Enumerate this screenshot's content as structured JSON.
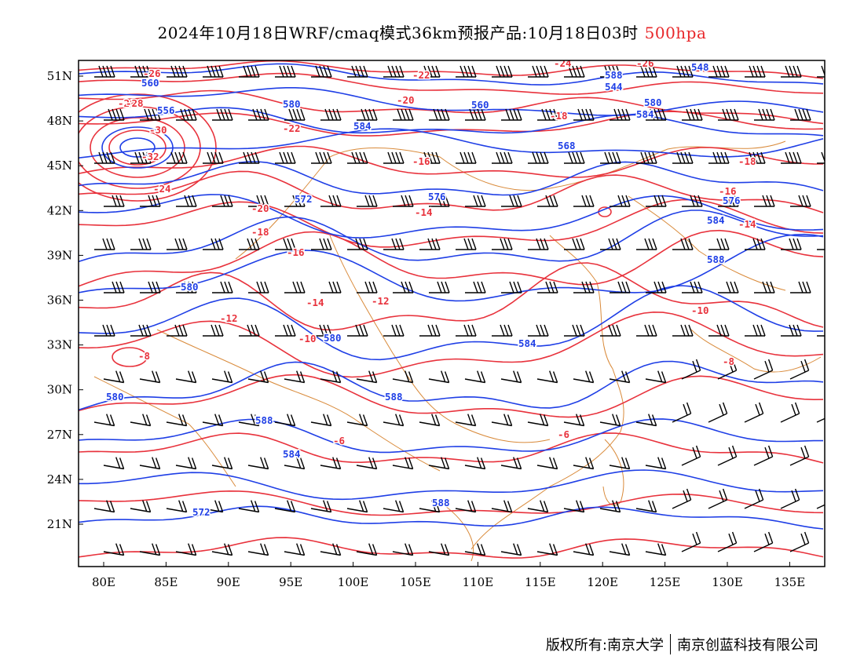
{
  "title": {
    "text": "2024年10月18日WRF/cmaq模式36km预报产品:10月18日03时",
    "level": "500hpa",
    "level_color": "#e8272a"
  },
  "colors": {
    "temperature_isotherm": "#e8323c",
    "geopotential_height": "#1f3fe6",
    "coastline_border": "#d98a3a",
    "wind_barb": "#000000"
  },
  "axes": {
    "lon_ticks": [
      "80E",
      "85E",
      "90E",
      "95E",
      "100E",
      "105E",
      "110E",
      "115E",
      "120E",
      "125E",
      "130E",
      "135E"
    ],
    "lat_ticks": [
      "51N",
      "48N",
      "45N",
      "42N",
      "39N",
      "36N",
      "33N",
      "30N",
      "27N",
      "24N",
      "21N"
    ]
  },
  "height_labels": [
    "560",
    "556",
    "580",
    "560",
    "584",
    "588",
    "548",
    "544",
    "580",
    "584",
    "568",
    "572",
    "576",
    "580",
    "584",
    "588",
    "576",
    "580",
    "584",
    "588",
    "580",
    "588",
    "584",
    "588",
    "572"
  ],
  "temperature_labels": [
    "-28",
    "-26",
    "-28",
    "-30",
    "-32",
    "-24",
    "-22",
    "-20",
    "-18",
    "-16",
    "-14",
    "-12",
    "-10",
    "-8",
    "-6",
    "-22",
    "-20",
    "-18",
    "-16",
    "-24",
    "-26",
    "-14",
    "-10",
    "-8",
    "-6",
    "-16",
    "-18",
    "-12",
    "-14"
  ],
  "footer": {
    "copyright_left": "版权所有:南京大学",
    "copyright_right": "南京创蓝科技有限公司"
  }
}
